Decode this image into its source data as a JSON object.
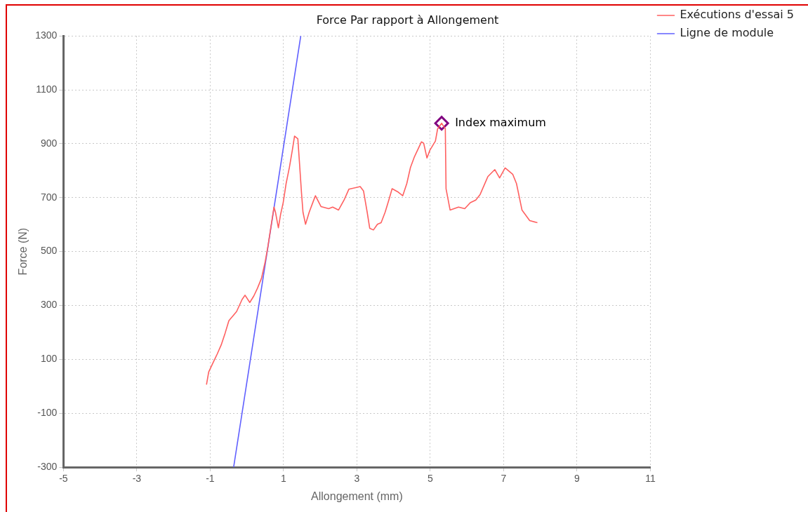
{
  "chart_data": {
    "type": "line",
    "title": "Force Par rapport à Allongement",
    "xlabel": "Allongement (mm)",
    "ylabel": "Force (N)",
    "xlim": [
      -5,
      11
    ],
    "xticks": [
      -5,
      -3,
      -1,
      1,
      3,
      5,
      7,
      9,
      11
    ],
    "ylim": [
      -300,
      1300
    ],
    "yticks": [
      -300,
      -100,
      100,
      300,
      500,
      700,
      900,
      1100,
      1300
    ],
    "grid": true,
    "legend": "top right",
    "marker": "none",
    "line_style": "solid",
    "series": [
      {
        "name": "Exécutions d'essai 5",
        "color": "#ff6060",
        "x": [
          -1.1,
          -1.04,
          -0.93,
          -0.81,
          -0.7,
          -0.59,
          -0.49,
          -0.28,
          -0.13,
          -0.05,
          0.08,
          0.19,
          0.29,
          0.4,
          0.5,
          0.57,
          0.65,
          0.74,
          0.78,
          0.86,
          0.92,
          0.99,
          1.07,
          1.16,
          1.24,
          1.3,
          1.39,
          1.43,
          1.49,
          1.53,
          1.6,
          1.7,
          1.81,
          1.87,
          2.02,
          2.23,
          2.34,
          2.5,
          2.65,
          2.78,
          3.09,
          3.18,
          3.28,
          3.35,
          3.45,
          3.56,
          3.66,
          3.77,
          3.87,
          3.96,
          4.13,
          4.25,
          4.36,
          4.46,
          4.57,
          4.76,
          4.82,
          4.91,
          4.99,
          5.14,
          5.2,
          5.31,
          5.37,
          5.41,
          5.43,
          5.54,
          5.77,
          5.94,
          6.09,
          6.24,
          6.36,
          6.57,
          6.76,
          6.89,
          7.04,
          7.25,
          7.35,
          7.5,
          7.71,
          7.92
        ],
        "values": [
          6,
          53,
          85,
          119,
          153,
          198,
          243,
          277,
          322,
          338,
          311,
          335,
          364,
          401,
          462,
          515,
          586,
          665,
          646,
          588,
          638,
          681,
          752,
          812,
          876,
          928,
          918,
          839,
          717,
          646,
          601,
          646,
          686,
          707,
          667,
          659,
          665,
          654,
          691,
          731,
          741,
          725,
          646,
          586,
          580,
          601,
          607,
          646,
          691,
          733,
          720,
          707,
          752,
          812,
          852,
          907,
          902,
          847,
          876,
          910,
          955,
          976,
          963,
          957,
          733,
          654,
          665,
          659,
          681,
          691,
          712,
          778,
          804,
          773,
          810,
          786,
          752,
          654,
          615,
          607
        ]
      },
      {
        "name": "Ligne de module",
        "color": "#6060ff",
        "x": [
          -0.36,
          1.47
        ],
        "values": [
          -300,
          1300
        ]
      },
      {
        "name": "Index maximum",
        "type": "scatter",
        "marker": "diamond",
        "color": "#800080",
        "x": [
          5.31
        ],
        "values": [
          976
        ]
      }
    ]
  }
}
